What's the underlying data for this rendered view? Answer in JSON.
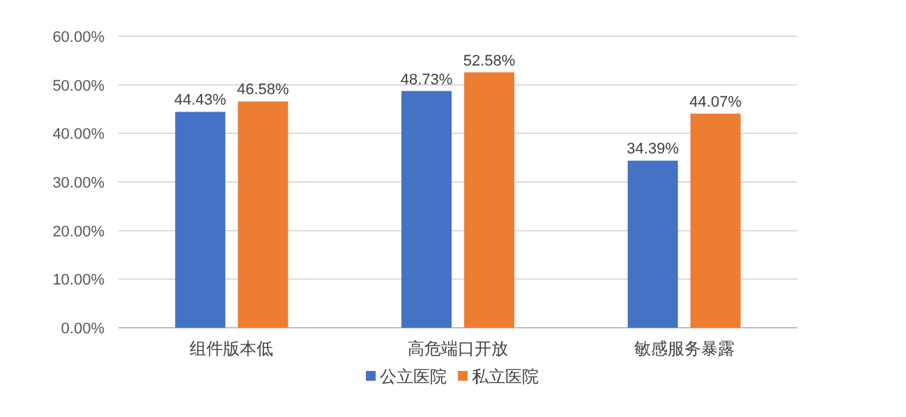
{
  "chart_data": {
    "type": "bar",
    "categories": [
      "组件版本低",
      "高危端口开放",
      "敏感服务暴露"
    ],
    "series": [
      {
        "name": "公立医院",
        "color": "#4472c4",
        "values": [
          44.43,
          48.73,
          34.39
        ],
        "value_labels": [
          "44.43%",
          "48.73%",
          "34.39%"
        ]
      },
      {
        "name": "私立医院",
        "color": "#ed7d31",
        "values": [
          46.58,
          52.58,
          44.07
        ],
        "value_labels": [
          "46.58%",
          "52.58%",
          "44.07%"
        ]
      }
    ],
    "ylim": [
      0,
      60
    ],
    "yticks": [
      {
        "value": 0,
        "label": "0.00%"
      },
      {
        "value": 10,
        "label": "10.00%"
      },
      {
        "value": 20,
        "label": "20.00%"
      },
      {
        "value": 30,
        "label": "30.00%"
      },
      {
        "value": 40,
        "label": "40.00%"
      },
      {
        "value": 50,
        "label": "50.00%"
      },
      {
        "value": 60,
        "label": "60.00%"
      }
    ],
    "grid": "y",
    "legend": "bottom"
  }
}
